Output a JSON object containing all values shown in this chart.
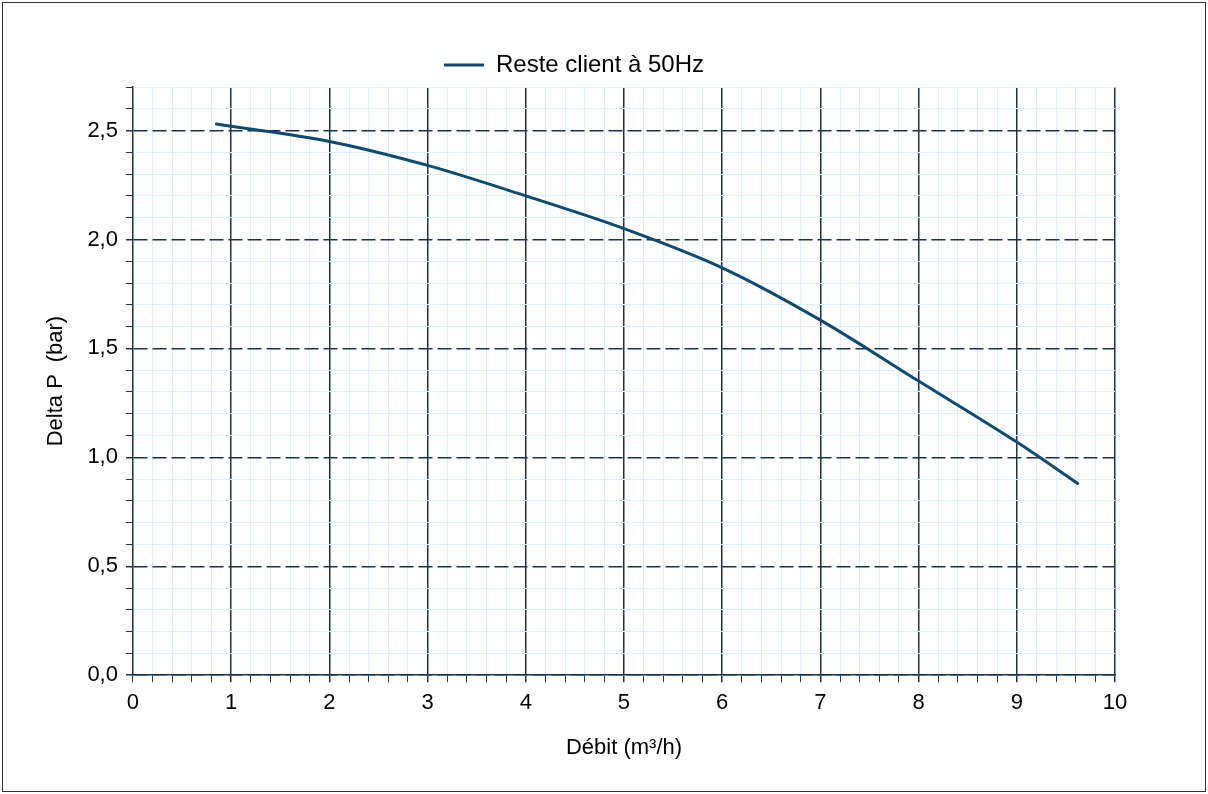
{
  "chart_data": {
    "type": "line",
    "xlabel": "Débit (m³/h)",
    "ylabel": "Delta P  (bar)",
    "legend": "top",
    "grid": true,
    "marker": "none",
    "line_style": "solid",
    "xlim": [
      0,
      10
    ],
    "ylim": [
      0,
      2.7
    ],
    "xticks": [
      0,
      {
        "value": 0.2,
        "label": null
      },
      {
        "value": 0.4,
        "label": null
      },
      {
        "value": 0.6,
        "label": null
      },
      {
        "value": 0.8,
        "label": null
      },
      1,
      {
        "value": 1.2,
        "label": null
      },
      {
        "value": 1.4,
        "label": null
      },
      {
        "value": 1.6,
        "label": null
      },
      {
        "value": 1.8,
        "label": null
      },
      2,
      {
        "value": 2.2,
        "label": null
      },
      {
        "value": 2.4,
        "label": null
      },
      {
        "value": 2.6,
        "label": null
      },
      {
        "value": 2.8,
        "label": null
      },
      3,
      {
        "value": 3.2,
        "label": null
      },
      {
        "value": 3.4,
        "label": null
      },
      {
        "value": 3.6,
        "label": null
      },
      {
        "value": 3.8,
        "label": null
      },
      4,
      {
        "value": 4.2,
        "label": null
      },
      {
        "value": 4.4,
        "label": null
      },
      {
        "value": 4.6,
        "label": null
      },
      {
        "value": 4.8,
        "label": null
      },
      5,
      {
        "value": 5.2,
        "label": null
      },
      {
        "value": 5.4,
        "label": null
      },
      {
        "value": 5.6,
        "label": null
      },
      {
        "value": 5.8,
        "label": null
      },
      6,
      {
        "value": 6.2,
        "label": null
      },
      {
        "value": 6.4,
        "label": null
      },
      {
        "value": 6.6,
        "label": null
      },
      {
        "value": 6.8,
        "label": null
      },
      7,
      {
        "value": 7.2,
        "label": null
      },
      {
        "value": 7.4,
        "label": null
      },
      {
        "value": 7.6,
        "label": null
      },
      {
        "value": 7.8,
        "label": null
      },
      8,
      {
        "value": 8.2,
        "label": null
      },
      {
        "value": 8.4,
        "label": null
      },
      {
        "value": 8.6,
        "label": null
      },
      {
        "value": 8.8,
        "label": null
      },
      9,
      {
        "value": 9.2,
        "label": null
      },
      {
        "value": 9.4,
        "label": null
      },
      {
        "value": 9.6,
        "label": null
      },
      {
        "value": 9.8,
        "label": null
      },
      10
    ],
    "yticks": [
      {
        "value": 0,
        "label": "0,0"
      },
      {
        "value": 0.1,
        "label": null
      },
      {
        "value": 0.2,
        "label": null
      },
      {
        "value": 0.3,
        "label": null
      },
      {
        "value": 0.4,
        "label": null
      },
      {
        "value": 0.5,
        "label": "0,5"
      },
      {
        "value": 0.6,
        "label": null
      },
      {
        "value": 0.7,
        "label": null
      },
      {
        "value": 0.8,
        "label": null
      },
      {
        "value": 0.9,
        "label": null
      },
      {
        "value": 1,
        "label": "1,0"
      },
      {
        "value": 1.1,
        "label": null
      },
      {
        "value": 1.2,
        "label": null
      },
      {
        "value": 1.3,
        "label": null
      },
      {
        "value": 1.4,
        "label": null
      },
      {
        "value": 1.5,
        "label": "1,5"
      },
      {
        "value": 1.6,
        "label": null
      },
      {
        "value": 1.7,
        "label": null
      },
      {
        "value": 1.8,
        "label": null
      },
      {
        "value": 1.9,
        "label": null
      },
      {
        "value": 2,
        "label": "2,0"
      },
      {
        "value": 2.1,
        "label": null
      },
      {
        "value": 2.2,
        "label": null
      },
      {
        "value": 2.3,
        "label": null
      },
      {
        "value": 2.4,
        "label": null
      },
      {
        "value": 2.5,
        "label": "2,5"
      },
      {
        "value": 2.6,
        "label": null
      },
      {
        "value": 2.7,
        "label": null
      }
    ],
    "series": [
      {
        "name": "Reste client à 50Hz",
        "color": "#0e4a6e",
        "x": [
          0.85,
          1,
          2,
          3,
          4,
          5,
          6,
          7,
          8,
          9,
          9.62
        ],
        "values": [
          2.53,
          2.52,
          2.45,
          2.34,
          2.2,
          2.05,
          1.87,
          1.63,
          1.35,
          1.07,
          0.88
        ]
      }
    ]
  }
}
